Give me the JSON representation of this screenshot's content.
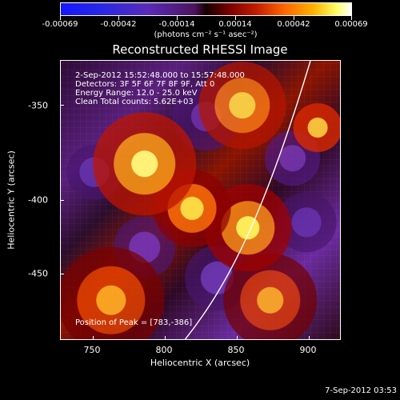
{
  "colorbar": {
    "ticks": [
      "-0.00069",
      "-0.00042",
      "-0.00014",
      "0.00014",
      "0.00042",
      "0.00069"
    ],
    "units": "(photons cm⁻² s⁻¹ asec⁻²)"
  },
  "plot": {
    "title": "Reconstructed RHESSI Image",
    "info_lines": [
      "2-Sep-2012 15:52:48.000 to 15:57:48.000",
      "Detectors: 3F 5F 6F 7F 8F 9F, Att 0",
      "Energy Range: 12.0 - 25.0 keV",
      "Clean    Total counts: 5.62E+03"
    ],
    "peak_text": "Position of Peak = [783,-386]",
    "x_axis_title": "Heliocentric X (arcsec)",
    "y_axis_title": "Heliocentric Y (arcsec)",
    "x_ticks": [
      "750",
      "800",
      "850",
      "900"
    ],
    "y_ticks": [
      "-350",
      "-400",
      "-450"
    ]
  },
  "footer": {
    "timestamp": "7-Sep-2012 03:53"
  }
}
